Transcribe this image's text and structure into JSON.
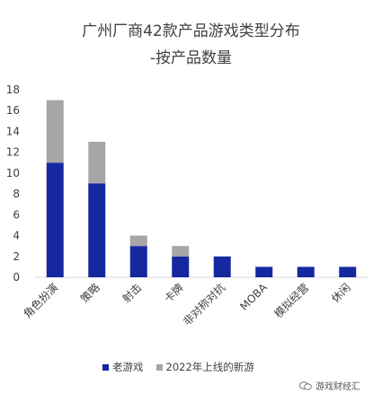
{
  "chart_data": {
    "type": "bar",
    "stacked": true,
    "title": "广州厂商42款产品游戏类型分布",
    "subtitle": "-按产品数量",
    "categories": [
      "角色扮演",
      "策略",
      "射击",
      "卡牌",
      "非对称对抗",
      "MOBA",
      "模拟经营",
      "休闲"
    ],
    "series": [
      {
        "name": "老游戏",
        "color": "#1528a0",
        "values": [
          11,
          9,
          3,
          2,
          2,
          1,
          1,
          1
        ]
      },
      {
        "name": "2022年上线的新游",
        "color": "#a6a6a6",
        "values": [
          6,
          4,
          1,
          1,
          0,
          0,
          0,
          0
        ]
      }
    ],
    "yticks": [
      0,
      2,
      4,
      6,
      8,
      10,
      12,
      14,
      16,
      18
    ],
    "ylim": [
      0,
      18
    ],
    "grid": false,
    "legend_position": "bottom"
  },
  "watermark": "游戏财经汇"
}
